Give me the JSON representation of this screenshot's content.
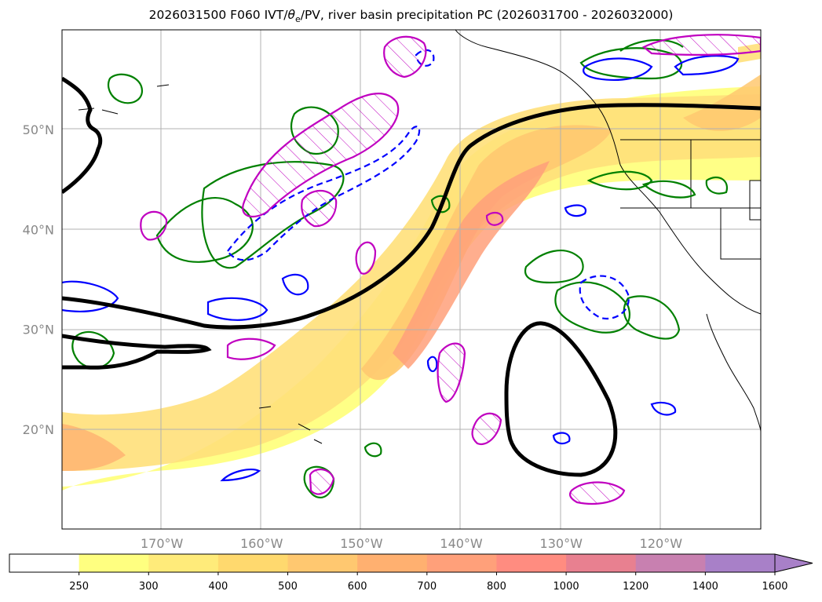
{
  "title_prefix": "2026031500 F060 IVT/",
  "title_theta": "θ",
  "title_sub": "e",
  "title_suffix": "/PV, river basin precipitation PC (2026031700 - 2026032000)",
  "chart_data": {
    "type": "contour-map",
    "title": "2026031500 F060 IVT/θe/PV, river basin precipitation PC (2026031700 - 2026032000)",
    "lat_ticks": [
      {
        "value": 50,
        "label": "50°N"
      },
      {
        "value": 40,
        "label": "40°N"
      },
      {
        "value": 30,
        "label": "30°N"
      },
      {
        "value": 20,
        "label": "20°N"
      }
    ],
    "lon_ticks": [
      {
        "value": -170,
        "label": "170°W"
      },
      {
        "value": -160,
        "label": "160°W"
      },
      {
        "value": -150,
        "label": "150°W"
      },
      {
        "value": -140,
        "label": "140°W"
      },
      {
        "value": -130,
        "label": "130°W"
      },
      {
        "value": -120,
        "label": "120°W"
      }
    ],
    "extent": {
      "lon_min": -180,
      "lon_max": -110,
      "lat_min": 10,
      "lat_max": 60
    },
    "colorbar": {
      "levels": [
        250,
        300,
        400,
        500,
        600,
        700,
        800,
        1000,
        1200,
        1400,
        1600
      ],
      "labels": [
        "250",
        "300",
        "400",
        "500",
        "600",
        "700",
        "800",
        "1000",
        "1200",
        "1400",
        "1600"
      ],
      "colors": [
        "#ffffff",
        "#ffff80",
        "#ffeb7a",
        "#ffd96e",
        "#ffc870",
        "#ffb070",
        "#ffa07a",
        "#ff8c80",
        "#e88090",
        "#c880b0",
        "#a880c8"
      ],
      "extend": "max"
    },
    "legend_colors": {
      "theta_e": "#000000",
      "pv_upper": "#0000ff",
      "pv_lower": "#00aa00",
      "precip": "#c000c0"
    }
  }
}
